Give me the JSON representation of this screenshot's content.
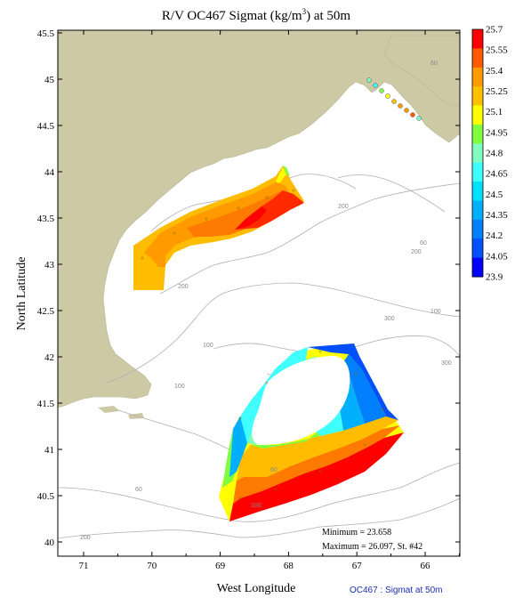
{
  "title": {
    "prefix": "R/V OC467 Sigmat (kg/m",
    "superscript": "3",
    "suffix": ") at 50m"
  },
  "axes": {
    "xlabel": "West Longitude",
    "ylabel": "North Latitude",
    "x_ticks": [
      "71",
      "70",
      "69",
      "68",
      "67",
      "66"
    ],
    "y_ticks": [
      "45.5",
      "45",
      "44.5",
      "44",
      "43.5",
      "43",
      "42.5",
      "42",
      "41.5",
      "41",
      "40.5",
      "40"
    ]
  },
  "colorbar": {
    "labels": [
      "25.7",
      "25.55",
      "25.4",
      "25.25",
      "25.1",
      "24.95",
      "24.8",
      "24.65",
      "24.5",
      "24.35",
      "24.2",
      "24.05",
      "23.9"
    ],
    "colors": [
      "#ff0000",
      "#ff5a00",
      "#ff9a00",
      "#ffc000",
      "#ffff00",
      "#80ff40",
      "#80ffc0",
      "#40ffff",
      "#00e0ff",
      "#00b0ff",
      "#0080ff",
      "#0050ff",
      "#0000ff"
    ]
  },
  "contour_labels": [
    "60",
    "200",
    "100",
    "200",
    "200",
    "300",
    "100",
    "300",
    "60",
    "100",
    "60",
    "100",
    "200",
    "60"
  ],
  "stats": {
    "minimum": "Minimum = 23.658",
    "maximum": "Maximum = 26.097, St. #42"
  },
  "footer": "OC467 : Sigmat at 50m",
  "colors": {
    "land": "#cdc9a5",
    "water": "#ffffff",
    "contour": "#b0b0b0",
    "frame": "#000000"
  }
}
